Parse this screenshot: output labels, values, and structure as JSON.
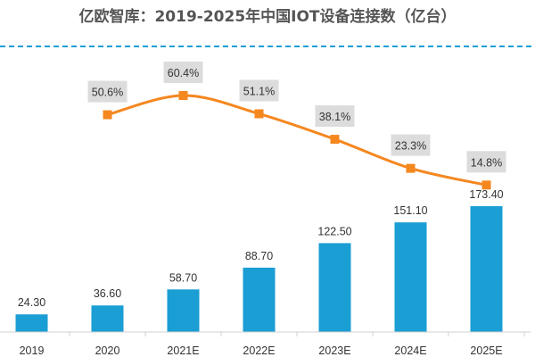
{
  "chart_data": {
    "type": "bar+line",
    "title": "亿欧智库：2019-2025年中国IOT设备连接数（亿台）",
    "categories": [
      "2019",
      "2020",
      "2021E",
      "2022E",
      "2023E",
      "2024E",
      "2025E"
    ],
    "series": [
      {
        "type": "bar",
        "values": [
          24.3,
          36.6,
          58.7,
          88.7,
          122.5,
          151.1,
          173.4
        ],
        "labels": [
          "24.30",
          "36.60",
          "58.70",
          "88.70",
          "122.50",
          "151.10",
          "173.40"
        ],
        "color": "#1a9ed4"
      },
      {
        "type": "line",
        "values": [
          null,
          50.6,
          60.4,
          51.1,
          38.1,
          23.3,
          14.8
        ],
        "labels": [
          "",
          "50.6%",
          "60.4%",
          "51.1%",
          "38.1%",
          "23.3%",
          "14.8%"
        ],
        "color": "#f5871f",
        "marker": "square",
        "smooth": true
      }
    ],
    "label_box_color": "#dcdcdc",
    "divider_color": "#1a9ed4",
    "grid": false,
    "legend": "none"
  }
}
